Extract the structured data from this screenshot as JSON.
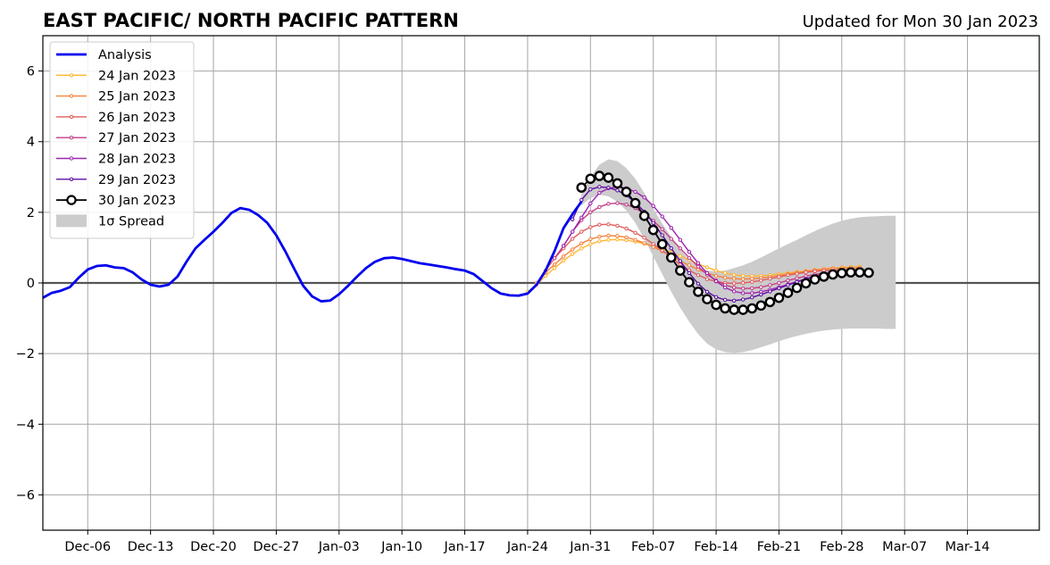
{
  "chart_data": {
    "type": "line",
    "title": "EAST PACIFIC/ NORTH PACIFIC PATTERN",
    "subtitle": "Updated for Mon 30 Jan 2023",
    "xlabel": "",
    "ylabel": "",
    "x_start_date": "2022-12-01",
    "xlim": [
      "2022-12-01",
      "2023-03-22"
    ],
    "ylim": [
      -7,
      7
    ],
    "yticks": [
      -6,
      -4,
      -2,
      0,
      2,
      4,
      6
    ],
    "ytick_labels": [
      "−6",
      "−4",
      "−2",
      "0",
      "2",
      "4",
      "6"
    ],
    "xtick_labels": [
      "Dec-06",
      "Dec-13",
      "Dec-20",
      "Dec-27",
      "Jan-03",
      "Jan-10",
      "Jan-17",
      "Jan-24",
      "Jan-31",
      "Feb-07",
      "Feb-14",
      "Feb-21",
      "Feb-28",
      "Mar-07",
      "Mar-14"
    ],
    "xtick_days": [
      5,
      12,
      19,
      26,
      33,
      40,
      47,
      54,
      61,
      68,
      75,
      82,
      89,
      96,
      103
    ],
    "grid": true,
    "legend_position": "top-left",
    "legend": [
      "Analysis",
      "24 Jan 2023",
      "25 Jan 2023",
      "26 Jan 2023",
      "27 Jan 2023",
      "28 Jan 2023",
      "29 Jan 2023",
      "30 Jan 2023",
      "1σ Spread"
    ],
    "analysis": {
      "name": "Analysis",
      "color": "#0000ee",
      "days": [
        0,
        1,
        2,
        3,
        4,
        5,
        6,
        7,
        8,
        9,
        10,
        11,
        12,
        13,
        14,
        15,
        16,
        17,
        18,
        19,
        20,
        21,
        22,
        23,
        24,
        25,
        26,
        27,
        28,
        29,
        30,
        31,
        32,
        33,
        34,
        35,
        36,
        37,
        38,
        39,
        40,
        41,
        42,
        43,
        44,
        45,
        46,
        47,
        48,
        49,
        50,
        51,
        52,
        53,
        54,
        55,
        56,
        57,
        58,
        59,
        60
      ],
      "values": [
        -0.42,
        -0.28,
        -0.22,
        -0.12,
        0.15,
        0.38,
        0.48,
        0.5,
        0.44,
        0.42,
        0.3,
        0.1,
        -0.05,
        -0.1,
        -0.05,
        0.18,
        0.6,
        0.98,
        1.22,
        1.45,
        1.7,
        1.98,
        2.12,
        2.07,
        1.92,
        1.7,
        1.35,
        0.9,
        0.4,
        -0.08,
        -0.38,
        -0.52,
        -0.5,
        -0.32,
        -0.08,
        0.18,
        0.42,
        0.6,
        0.7,
        0.72,
        0.68,
        0.62,
        0.56,
        0.52,
        0.48,
        0.44,
        0.39,
        0.35,
        0.25,
        0.05,
        -0.15,
        -0.3,
        -0.35,
        -0.36,
        -0.3,
        -0.05,
        0.35,
        0.9,
        1.55,
        1.95,
        2.3
      ]
    },
    "spread": {
      "name": "1σ Spread",
      "color": "#cccccc",
      "days": [
        60,
        61,
        62,
        63,
        64,
        65,
        66,
        67,
        68,
        69,
        70,
        71,
        72,
        73,
        74,
        75,
        76,
        77,
        78,
        79,
        80,
        81,
        82,
        83,
        84,
        85,
        86,
        87,
        88,
        89,
        90,
        91,
        92,
        93,
        94,
        95
      ],
      "upper": [
        2.5,
        3.0,
        3.35,
        3.5,
        3.45,
        3.25,
        2.95,
        2.55,
        2.1,
        1.68,
        1.3,
        0.95,
        0.65,
        0.45,
        0.35,
        0.33,
        0.35,
        0.42,
        0.5,
        0.6,
        0.72,
        0.85,
        0.98,
        1.1,
        1.22,
        1.35,
        1.47,
        1.58,
        1.68,
        1.76,
        1.82,
        1.86,
        1.88,
        1.89,
        1.9,
        1.9
      ],
      "lower": [
        2.2,
        2.4,
        2.5,
        2.45,
        2.3,
        2.05,
        1.7,
        1.25,
        0.75,
        0.25,
        -0.25,
        -0.7,
        -1.1,
        -1.45,
        -1.72,
        -1.88,
        -1.96,
        -1.98,
        -1.96,
        -1.9,
        -1.82,
        -1.74,
        -1.65,
        -1.57,
        -1.5,
        -1.44,
        -1.39,
        -1.35,
        -1.32,
        -1.3,
        -1.29,
        -1.29,
        -1.29,
        -1.29,
        -1.3,
        -1.3
      ]
    },
    "series": [
      {
        "name": "24 Jan 2023",
        "color": "#ffb531",
        "start_day": 54,
        "values": [
          -0.25,
          -0.05,
          0.2,
          0.42,
          0.63,
          0.82,
          0.98,
          1.1,
          1.18,
          1.22,
          1.23,
          1.21,
          1.17,
          1.11,
          1.04,
          0.96,
          0.86,
          0.76,
          0.65,
          0.54,
          0.44,
          0.35,
          0.28,
          0.23,
          0.2,
          0.19,
          0.2,
          0.22,
          0.25,
          0.28,
          0.31,
          0.34,
          0.37,
          0.4,
          0.42,
          0.44,
          0.45,
          0.46
        ]
      },
      {
        "name": "25 Jan 2023",
        "color": "#f5813f",
        "start_day": 55,
        "values": [
          0.0,
          0.3,
          0.52,
          0.75,
          0.95,
          1.12,
          1.24,
          1.31,
          1.34,
          1.33,
          1.29,
          1.22,
          1.13,
          1.02,
          0.9,
          0.76,
          0.62,
          0.5,
          0.38,
          0.28,
          0.2,
          0.15,
          0.12,
          0.11,
          0.12,
          0.14,
          0.17,
          0.21,
          0.25,
          0.29,
          0.33,
          0.36,
          0.39,
          0.41,
          0.42,
          0.43,
          0.43
        ]
      },
      {
        "name": "26 Jan 2023",
        "color": "#e05c5c",
        "start_day": 56,
        "values": [
          0.35,
          0.7,
          0.98,
          1.25,
          1.45,
          1.58,
          1.65,
          1.66,
          1.62,
          1.54,
          1.42,
          1.28,
          1.1,
          0.92,
          0.72,
          0.52,
          0.36,
          0.22,
          0.11,
          0.04,
          0.0,
          -0.01,
          0.0,
          0.03,
          0.07,
          0.12,
          0.17,
          0.22,
          0.26,
          0.3,
          0.33,
          0.35,
          0.36,
          0.37,
          0.37,
          0.37
        ]
      },
      {
        "name": "27 Jan 2023",
        "color": "#c33c86",
        "start_day": 57,
        "values": [
          0.7,
          1.05,
          1.45,
          1.78,
          2.0,
          2.15,
          2.24,
          2.26,
          2.22,
          2.12,
          1.96,
          1.76,
          1.52,
          1.25,
          0.98,
          0.71,
          0.46,
          0.24,
          0.07,
          -0.06,
          -0.13,
          -0.16,
          -0.15,
          -0.12,
          -0.06,
          0.0,
          0.07,
          0.13,
          0.19,
          0.24,
          0.28,
          0.3,
          0.31,
          0.32,
          0.32
        ]
      },
      {
        "name": "28 Jan 2023",
        "color": "#9d23b0",
        "start_day": 58,
        "values": [
          1.05,
          1.45,
          1.85,
          2.25,
          2.55,
          2.68,
          2.72,
          2.68,
          2.58,
          2.42,
          2.18,
          1.88,
          1.56,
          1.22,
          0.88,
          0.56,
          0.28,
          0.05,
          -0.13,
          -0.24,
          -0.29,
          -0.29,
          -0.25,
          -0.19,
          -0.12,
          -0.04,
          0.04,
          0.12,
          0.19,
          0.25,
          0.3,
          0.32,
          0.33,
          0.33
        ]
      },
      {
        "name": "29 Jan 2023",
        "color": "#5a0fa0",
        "start_day": 59,
        "values": [
          1.8,
          2.35,
          2.65,
          2.72,
          2.7,
          2.62,
          2.48,
          2.28,
          2.02,
          1.7,
          1.35,
          0.98,
          0.62,
          0.28,
          -0.02,
          -0.25,
          -0.4,
          -0.48,
          -0.5,
          -0.47,
          -0.41,
          -0.33,
          -0.24,
          -0.15,
          -0.06,
          0.03,
          0.11,
          0.18,
          0.23,
          0.27,
          0.29,
          0.3,
          0.3
        ]
      },
      {
        "name": "30 Jan 2023",
        "color": "#000000",
        "start_day": 60,
        "values": [
          2.7,
          2.95,
          3.03,
          2.98,
          2.82,
          2.58,
          2.26,
          1.9,
          1.5,
          1.1,
          0.72,
          0.35,
          0.02,
          -0.25,
          -0.46,
          -0.62,
          -0.72,
          -0.76,
          -0.76,
          -0.72,
          -0.64,
          -0.54,
          -0.42,
          -0.28,
          -0.14,
          -0.01,
          0.1,
          0.18,
          0.24,
          0.28,
          0.3,
          0.3,
          0.29
        ]
      }
    ]
  }
}
